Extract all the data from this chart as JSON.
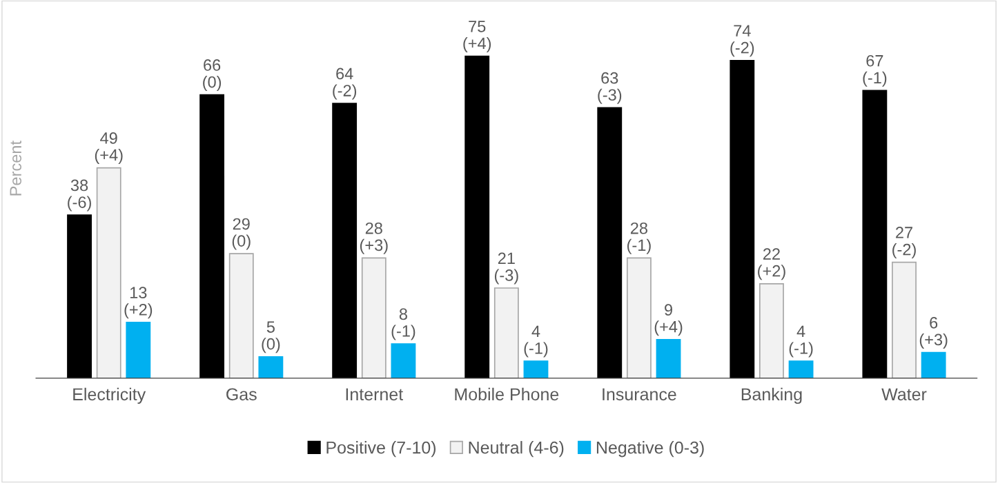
{
  "chart_data": {
    "type": "bar",
    "ylabel": "Percent",
    "categories": [
      "Electricity",
      "Gas",
      "Internet",
      "Mobile Phone",
      "Insurance",
      "Banking",
      "Water"
    ],
    "series": [
      {
        "name": "Positive (7-10)",
        "color": "#000000",
        "values": [
          38,
          66,
          64,
          75,
          63,
          74,
          67
        ],
        "value_labels": [
          "38\n(-6)",
          "66\n(0)",
          "64\n(-2)",
          "75\n(+4)",
          "63\n(-3)",
          "74\n(-2)",
          "67\n(-1)"
        ]
      },
      {
        "name": "Neutral (4-6)",
        "color": "#f2f2f2",
        "values": [
          49,
          29,
          28,
          21,
          28,
          22,
          27
        ],
        "value_labels": [
          "49\n(+4)",
          "29\n(0)",
          "28\n(+3)",
          "21\n(-3)",
          "28\n(-1)",
          "22\n(+2)",
          "27\n(-2)"
        ]
      },
      {
        "name": "Negative (0-3)",
        "color": "#00b0f0",
        "values": [
          13,
          5,
          8,
          4,
          9,
          4,
          6
        ],
        "value_labels": [
          "13\n(+2)",
          "5\n(0)",
          "8\n(-1)",
          "4\n(-1)",
          "9\n(+4)",
          "4\n(-1)",
          "6\n(+3)"
        ]
      }
    ],
    "legend": "bottom",
    "grid": false
  }
}
